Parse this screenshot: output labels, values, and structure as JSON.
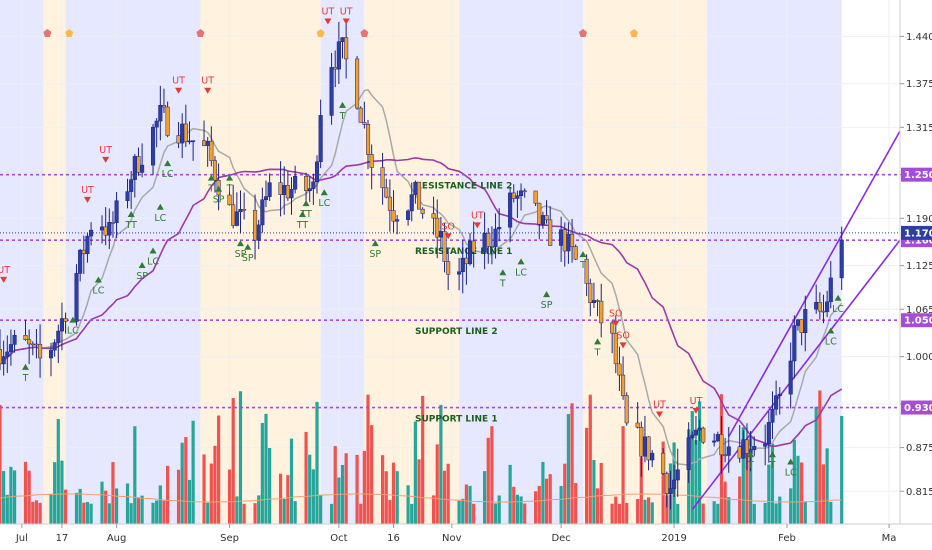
{
  "chart_data": {
    "type": "candlestick",
    "title": "",
    "xlabel": "",
    "ylabel": "",
    "ylim": [
      0.77,
      1.49
    ],
    "y_ticks": [
      "1.440",
      "1.375",
      "1.315",
      "1.250",
      "1.190",
      "1.125",
      "1.065",
      "1.000",
      "0.935",
      "0.875",
      "0.815"
    ],
    "y_tick_values": [
      1.44,
      1.375,
      1.315,
      1.25,
      1.19,
      1.125,
      1.065,
      1.0,
      0.935,
      0.875,
      0.815
    ],
    "x_ticks": [
      {
        "label": "Jul",
        "day": 6
      },
      {
        "label": "17",
        "day": 17
      },
      {
        "label": "Aug",
        "day": 32
      },
      {
        "label": "Sep",
        "day": 63
      },
      {
        "label": "Oct",
        "day": 93
      },
      {
        "label": "16",
        "day": 108
      },
      {
        "label": "Nov",
        "day": 124
      },
      {
        "label": "Dec",
        "day": 154
      },
      {
        "label": "2019",
        "day": 185
      },
      {
        "label": "Feb",
        "day": 216
      },
      {
        "label": "Ma",
        "day": 244
      }
    ],
    "x_range": [
      0,
      247
    ],
    "horizontal_lines": [
      {
        "value": 1.25,
        "label": "RESISTANCE LINE 2",
        "price_label": "1.250"
      },
      {
        "value": 1.16,
        "label": "RESISTANCE LINE 1",
        "price_label": "1.160"
      },
      {
        "value": 1.05,
        "label": "SUPPORT LINE 2",
        "price_label": "1.050"
      },
      {
        "value": 0.93,
        "label": "SUPPORT LINE 1",
        "price_label": "0.930"
      }
    ],
    "last_price": {
      "value": 1.17,
      "label": "1.170"
    },
    "price_anchors": [
      [
        0,
        1.01
      ],
      [
        6,
        1.02
      ],
      [
        12,
        0.99
      ],
      [
        17,
        1.05
      ],
      [
        22,
        1.13
      ],
      [
        26,
        1.2
      ],
      [
        30,
        1.17
      ],
      [
        36,
        1.25
      ],
      [
        44,
        1.33
      ],
      [
        50,
        1.31
      ],
      [
        57,
        1.28
      ],
      [
        63,
        1.2
      ],
      [
        70,
        1.17
      ],
      [
        74,
        1.23
      ],
      [
        80,
        1.23
      ],
      [
        86,
        1.23
      ],
      [
        89,
        1.4
      ],
      [
        94,
        1.42
      ],
      [
        98,
        1.36
      ],
      [
        102,
        1.27
      ],
      [
        108,
        1.2
      ],
      [
        114,
        1.22
      ],
      [
        118,
        1.18
      ],
      [
        121,
        1.16
      ],
      [
        124,
        1.09
      ],
      [
        127,
        1.12
      ],
      [
        130,
        1.15
      ],
      [
        136,
        1.17
      ],
      [
        141,
        1.22
      ],
      [
        145,
        1.21
      ],
      [
        150,
        1.17
      ],
      [
        155,
        1.16
      ],
      [
        159,
        1.12
      ],
      [
        164,
        1.06
      ],
      [
        168,
        1.02
      ],
      [
        172,
        0.9
      ],
      [
        176,
        0.88
      ],
      [
        180,
        0.86
      ],
      [
        184,
        0.82
      ],
      [
        188,
        0.86
      ],
      [
        192,
        0.9
      ],
      [
        196,
        0.89
      ],
      [
        200,
        0.88
      ],
      [
        205,
        0.88
      ],
      [
        210,
        0.89
      ],
      [
        214,
        0.94
      ],
      [
        218,
        1.03
      ],
      [
        222,
        1.06
      ],
      [
        226,
        1.06
      ],
      [
        229,
        1.12
      ],
      [
        231,
        1.17
      ]
    ],
    "bands": [
      {
        "from": 0,
        "to": 12,
        "color": "#e6e8ff"
      },
      {
        "from": 12,
        "to": 18,
        "color": "#fff3e0"
      },
      {
        "from": 18,
        "to": 55,
        "color": "#e6e8ff"
      },
      {
        "from": 55,
        "to": 88,
        "color": "#fff3e0"
      },
      {
        "from": 88,
        "to": 100,
        "color": "#e6e8ff"
      },
      {
        "from": 100,
        "to": 126,
        "color": "#fff3e0"
      },
      {
        "from": 126,
        "to": 160,
        "color": "#e6e8ff"
      },
      {
        "from": 160,
        "to": 194,
        "color": "#fff3e0"
      },
      {
        "from": 194,
        "to": 231,
        "color": "#e6e8ff"
      }
    ],
    "annotations": [
      {
        "text": "UT",
        "day": 1,
        "price": 1.115,
        "type": "bear"
      },
      {
        "text": "T",
        "day": 7,
        "price": 0.99,
        "type": "bull"
      },
      {
        "text": "LC",
        "day": 20,
        "price": 1.055,
        "type": "bull"
      },
      {
        "text": "UT",
        "day": 24,
        "price": 1.225,
        "type": "bear"
      },
      {
        "text": "UT",
        "day": 29,
        "price": 1.28,
        "type": "bear"
      },
      {
        "text": "LC",
        "day": 27,
        "price": 1.11,
        "type": "bull"
      },
      {
        "text": "TT",
        "day": 36,
        "price": 1.2,
        "type": "bull"
      },
      {
        "text": "SP",
        "day": 39,
        "price": 1.13,
        "type": "bull"
      },
      {
        "text": "LC",
        "day": 42,
        "price": 1.15,
        "type": "bull"
      },
      {
        "text": "LC",
        "day": 44,
        "price": 1.21,
        "type": "bull"
      },
      {
        "text": "LC",
        "day": 46,
        "price": 1.27,
        "type": "bull"
      },
      {
        "text": "UT",
        "day": 49,
        "price": 1.375,
        "type": "bear"
      },
      {
        "text": "UT",
        "day": 57,
        "price": 1.375,
        "type": "bear"
      },
      {
        "text": "T",
        "day": 58,
        "price": 1.25,
        "type": "bull"
      },
      {
        "text": "SP",
        "day": 60,
        "price": 1.235,
        "type": "bull"
      },
      {
        "text": "T",
        "day": 63,
        "price": 1.25,
        "type": "bull"
      },
      {
        "text": "SP",
        "day": 66,
        "price": 1.16,
        "type": "bull"
      },
      {
        "text": "SP",
        "day": 68,
        "price": 1.155,
        "type": "bull"
      },
      {
        "text": "TT",
        "day": 83,
        "price": 1.2,
        "type": "bull"
      },
      {
        "text": "TT",
        "day": 84,
        "price": 1.215,
        "type": "bull"
      },
      {
        "text": "LC",
        "day": 89,
        "price": 1.23,
        "type": "bull"
      },
      {
        "text": "UT",
        "day": 90,
        "price": 1.47,
        "type": "bear"
      },
      {
        "text": "UT",
        "day": 95,
        "price": 1.47,
        "type": "bear"
      },
      {
        "text": "T",
        "day": 94,
        "price": 1.35,
        "type": "bull"
      },
      {
        "text": "SP",
        "day": 103,
        "price": 1.16,
        "type": "bull"
      },
      {
        "text": "SO",
        "day": 123,
        "price": 1.175,
        "type": "bear"
      },
      {
        "text": "UT",
        "day": 131,
        "price": 1.19,
        "type": "bear"
      },
      {
        "text": "T",
        "day": 138,
        "price": 1.12,
        "type": "bull"
      },
      {
        "text": "LC",
        "day": 143,
        "price": 1.135,
        "type": "bull"
      },
      {
        "text": "SP",
        "day": 150,
        "price": 1.09,
        "type": "bull"
      },
      {
        "text": "T",
        "day": 160,
        "price": 1.145,
        "type": "bull"
      },
      {
        "text": "T",
        "day": 164,
        "price": 1.025,
        "type": "bull"
      },
      {
        "text": "SO",
        "day": 169,
        "price": 1.055,
        "type": "bear"
      },
      {
        "text": "SO",
        "day": 171,
        "price": 1.025,
        "type": "bear"
      },
      {
        "text": "UT",
        "day": 181,
        "price": 0.93,
        "type": "bear"
      },
      {
        "text": "UT",
        "day": 191,
        "price": 0.935,
        "type": "bear"
      },
      {
        "text": "T",
        "day": 206,
        "price": 0.87,
        "type": "bull"
      },
      {
        "text": "T",
        "day": 212,
        "price": 0.87,
        "type": "bull"
      },
      {
        "text": "LC",
        "day": 217,
        "price": 0.86,
        "type": "bull"
      },
      {
        "text": "LC",
        "day": 228,
        "price": 1.04,
        "type": "bull"
      },
      {
        "text": "LC",
        "day": 230,
        "price": 1.085,
        "type": "bull"
      }
    ],
    "top_markers": [
      {
        "day": 13,
        "color": "#e57373"
      },
      {
        "day": 19,
        "color": "#ffb74d"
      },
      {
        "day": 55,
        "color": "#e57373"
      },
      {
        "day": 88,
        "color": "#ffb74d"
      },
      {
        "day": 100,
        "color": "#e57373"
      },
      {
        "day": 160,
        "color": "#e57373"
      },
      {
        "day": 174,
        "color": "#ffb74d"
      }
    ],
    "channel": {
      "lower": [
        [
          190,
          0.79
        ],
        [
          247,
          1.16
        ]
      ],
      "upper": [
        [
          200,
          0.89
        ],
        [
          247,
          1.31
        ]
      ],
      "color": "#8b2be2"
    },
    "colors": {
      "up": "#2d3fa6",
      "down": "#f0a030",
      "line_dashed": "#a64dd6",
      "ma_slow": "#9c3aa8",
      "ma_fast": "#a9a9a9",
      "vol_up": "#26a69a",
      "vol_down": "#ef5350",
      "vol_avg": "#f0a070",
      "last_price_box": "#2d3fa6",
      "level_box": "#a64dd6"
    }
  }
}
